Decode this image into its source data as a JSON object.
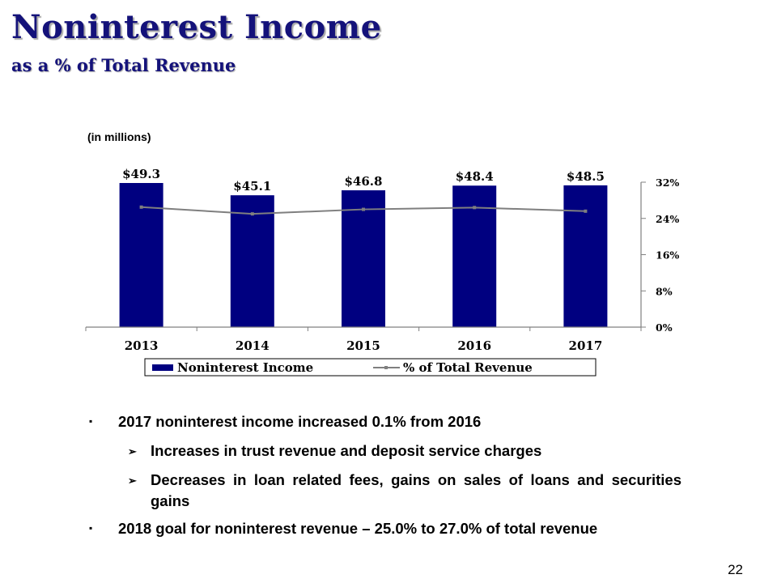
{
  "header": {
    "title": "Noninterest Income",
    "subtitle": "as a % of Total Revenue",
    "units_note": "(in millions)"
  },
  "chart_data": {
    "type": "bar",
    "categories": [
      "2013",
      "2014",
      "2015",
      "2016",
      "2017"
    ],
    "series": [
      {
        "name": "Noninterest Income",
        "kind": "bar",
        "axis": "left",
        "values": [
          49.3,
          45.1,
          46.8,
          48.4,
          48.5
        ],
        "labels": [
          "$49.3",
          "$45.1",
          "$46.8",
          "$48.4",
          "$48.5"
        ],
        "color": "#000080"
      },
      {
        "name": "% of Total Revenue",
        "kind": "line",
        "axis": "right",
        "values": [
          26.5,
          25.0,
          26.0,
          26.4,
          25.6
        ],
        "color": "#7f7f7f"
      }
    ],
    "left_axis": {
      "range": [
        0,
        55
      ],
      "visible": false
    },
    "right_axis": {
      "range": [
        0,
        32
      ],
      "ticks": [
        0,
        8,
        16,
        24,
        32
      ],
      "tick_labels": [
        "0%",
        "8%",
        "16%",
        "24%",
        "32%"
      ]
    },
    "grid": false,
    "legend_position": "bottom"
  },
  "bullets": [
    {
      "text": "2017 noninterest income increased 0.1% from 2016",
      "sub": [
        "Increases in trust revenue and deposit service charges",
        "Decreases in loan related fees, gains on sales of loans and securities gains"
      ]
    },
    {
      "text": "2018 goal for noninterest revenue – 25.0% to 27.0% of total revenue",
      "sub": []
    }
  ],
  "bullet_markers": {
    "level1": "▪",
    "level2": "➢"
  },
  "page_number": "22"
}
